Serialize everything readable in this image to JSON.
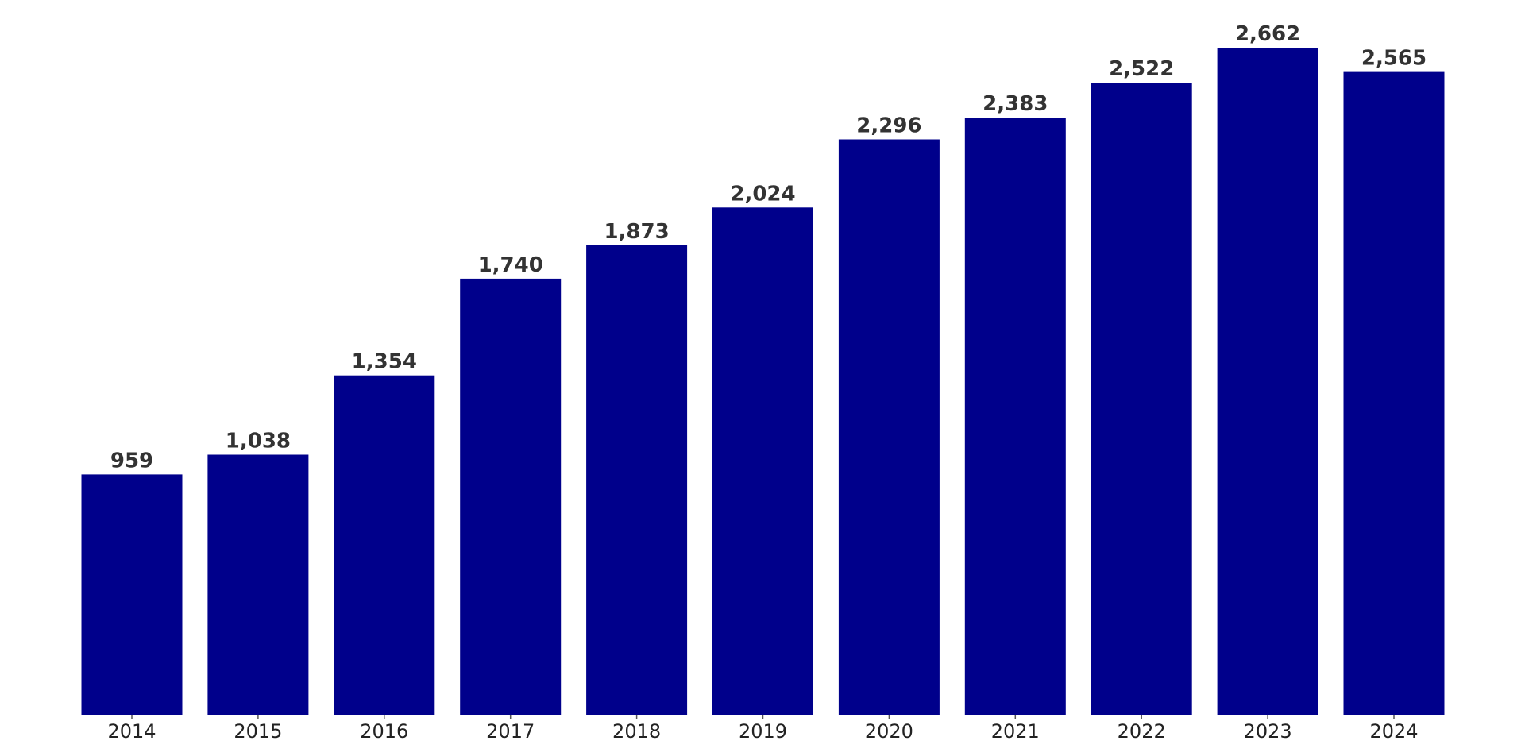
{
  "chart_data": {
    "type": "bar",
    "categories": [
      "2014",
      "2015",
      "2016",
      "2017",
      "2018",
      "2019",
      "2020",
      "2021",
      "2022",
      "2023",
      "2024"
    ],
    "values": [
      959,
      1038,
      1354,
      1740,
      1873,
      2024,
      2296,
      2383,
      2522,
      2662,
      2565
    ],
    "value_labels": [
      "959",
      "1,038",
      "1,354",
      "1,740",
      "1,873",
      "2,024",
      "2,296",
      "2,383",
      "2,522",
      "2,662",
      "2,565"
    ],
    "title": "",
    "xlabel": "",
    "ylabel": "",
    "ylim": [
      0,
      2662
    ],
    "grid": false,
    "legend": "none",
    "colors": {
      "bar": "#00008b",
      "value_label": "#333333",
      "tick_label": "#222222"
    }
  }
}
